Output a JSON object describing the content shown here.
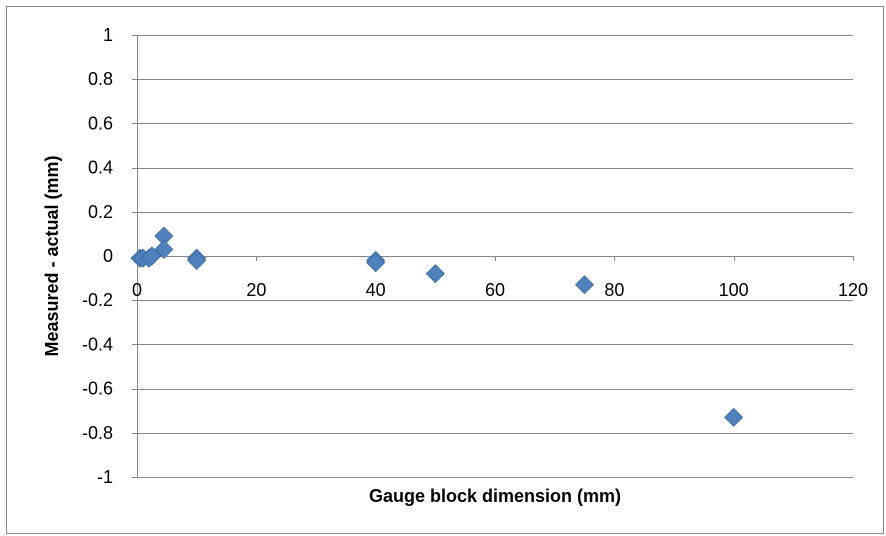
{
  "chart_data": {
    "type": "scatter",
    "title": "",
    "xlabel": "Gauge block dimension (mm)",
    "ylabel": "Measured - actual (mm)",
    "xlim": [
      0,
      120
    ],
    "ylim": [
      -1,
      1
    ],
    "x_ticks": [
      0,
      20,
      40,
      60,
      80,
      100,
      120
    ],
    "y_ticks": [
      1,
      0.8,
      0.6,
      0.4,
      0.2,
      0,
      -0.2,
      -0.4,
      -0.6,
      -0.8,
      -1
    ],
    "x_tick_labels": [
      "0",
      "20",
      "40",
      "60",
      "80",
      "100",
      "120"
    ],
    "y_tick_labels": [
      "1",
      "0.8",
      "0.6",
      "0.4",
      "0.2",
      "0",
      "-0.2",
      "-0.4",
      "-0.6",
      "-0.8",
      "-1"
    ],
    "grid": {
      "horizontal": true,
      "vertical": false
    },
    "legend": "none",
    "marker": "diamond",
    "marker_color": "#4F81BD",
    "gridline_color": "#868686",
    "series": [
      {
        "points": [
          {
            "x": 0.5,
            "y": -0.01
          },
          {
            "x": 1.0,
            "y": -0.01
          },
          {
            "x": 2.0,
            "y": -0.01
          },
          {
            "x": 2.5,
            "y": 0.0
          },
          {
            "x": 4.5,
            "y": 0.09
          },
          {
            "x": 4.5,
            "y": 0.03
          },
          {
            "x": 10.0,
            "y": -0.01
          },
          {
            "x": 10.0,
            "y": -0.02
          },
          {
            "x": 40.0,
            "y": -0.02
          },
          {
            "x": 40.0,
            "y": -0.03
          },
          {
            "x": 50.0,
            "y": -0.08
          },
          {
            "x": 75.0,
            "y": -0.13
          },
          {
            "x": 100.0,
            "y": -0.73
          }
        ]
      }
    ]
  }
}
